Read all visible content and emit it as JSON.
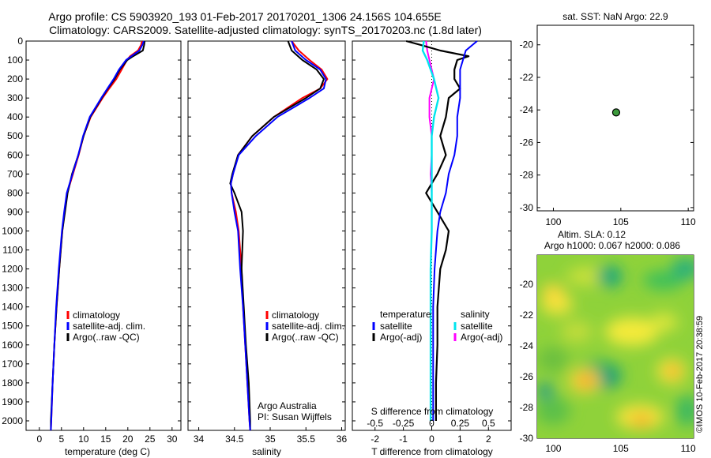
{
  "title_line1": "Argo profile: CS 5903920_193 01-Feb-2017 20170201_1306 24.156S 104.655E",
  "title_line2": "Climatology: CARS2009. Satellite-adjusted climatology: synTS_20170203.nc (1.8d later)",
  "watermark": "©IMOS 10-Feb-2017 20:38:59",
  "colors": {
    "climatology": "#ff0000",
    "satellite": "#0000ff",
    "argo": "#000000",
    "sat_diff_T": "#0000ff",
    "sal_sat": "#00e5ee",
    "sal_argo": "#ff00ff"
  },
  "panel_temp": {
    "xlabel": "temperature (deg C)",
    "xticks": [
      "0",
      "5",
      "10",
      "15",
      "20",
      "25",
      "30"
    ],
    "legend": [
      "climatology",
      "satellite-adj. clim.",
      "Argo(..raw -QC)"
    ]
  },
  "panel_sal": {
    "xlabel": "salinity",
    "xticks": [
      "34",
      "34.5",
      "35",
      "35.5",
      "36"
    ],
    "legend": [
      "climatology",
      "satellite-adj. clim.",
      "Argo(..raw -QC)"
    ],
    "note_line1": "Argo Australia",
    "note_line2": "PI: Susan Wijffels"
  },
  "panel_diff": {
    "xlabel": "T difference from climatology",
    "top_xlabel": "S difference from climatology",
    "xticks": [
      "-2",
      "-1",
      "0",
      "1",
      "2"
    ],
    "top_xticks": [
      "-0.5",
      "-0.25",
      "0",
      "0.25",
      "0.5"
    ],
    "legend_header_T": "temperature",
    "legend_header_S": "salinity",
    "legend_T": [
      "satellite",
      "Argo(-adj)"
    ],
    "legend_S": [
      "satellite",
      "Argo(-adj)"
    ]
  },
  "depth_ticks": [
    "0",
    "100",
    "200",
    "300",
    "400",
    "500",
    "600",
    "700",
    "800",
    "900",
    "1000",
    "1100",
    "1200",
    "1300",
    "1400",
    "1500",
    "1600",
    "1700",
    "1800",
    "1900",
    "2000"
  ],
  "map_panel": {
    "title": "sat. SST: NaN Argo: 22.9",
    "yticks": [
      "-20",
      "-22",
      "-24",
      "-26",
      "-28",
      "-30"
    ],
    "xticks": [
      "100",
      "105",
      "110"
    ],
    "float_lon": 104.655,
    "float_lat": -24.156
  },
  "sla_panel": {
    "title_line1": "Altim. SLA: 0.12",
    "title_line2": "Argo h1000: 0.067 h2000: 0.086",
    "yticks": [
      "-20",
      "-22",
      "-24",
      "-26",
      "-28",
      "-30"
    ],
    "xticks": [
      "100",
      "105",
      "110"
    ]
  },
  "chart_data": [
    {
      "type": "line",
      "name": "temperature profile",
      "xlabel": "temperature (deg C)",
      "xlim": [
        -3,
        32
      ],
      "ylim": [
        0,
        2050
      ],
      "y_reversed": true,
      "series": [
        {
          "name": "climatology",
          "depth": [
            0,
            20,
            50,
            80,
            100,
            150,
            200,
            250,
            300,
            400,
            500,
            600,
            700,
            800,
            900,
            1000,
            1200,
            1400,
            1600,
            1800,
            2000,
            2050
          ],
          "values": [
            23.2,
            23.0,
            22.3,
            20.5,
            19.8,
            18.6,
            17.4,
            15.8,
            14.3,
            11.6,
            10.0,
            8.9,
            7.6,
            6.3,
            5.7,
            5.2,
            4.5,
            3.9,
            3.4,
            3.0,
            2.7,
            2.6
          ]
        },
        {
          "name": "satellite-adj. clim.",
          "depth": [
            0,
            20,
            50,
            80,
            100,
            150,
            200,
            250,
            300,
            400,
            500,
            600,
            700,
            800,
            900,
            1000,
            1200,
            1400,
            1600,
            1800,
            2000,
            2050
          ],
          "values": [
            23.6,
            23.3,
            22.6,
            20.8,
            19.6,
            18.0,
            16.8,
            15.4,
            14.0,
            11.4,
            9.9,
            8.8,
            7.5,
            6.2,
            5.6,
            5.1,
            4.4,
            3.8,
            3.4,
            3.0,
            2.7,
            2.6
          ]
        },
        {
          "name": "Argo(..raw -QC)",
          "depth": [
            0,
            20,
            50,
            80,
            100,
            150,
            200,
            250,
            300,
            400,
            500,
            600,
            700,
            800,
            900,
            1000,
            1200,
            1400,
            1600,
            1800,
            2000,
            2050
          ],
          "values": [
            23.8,
            23.7,
            23.4,
            21.2,
            19.9,
            18.2,
            17.0,
            15.5,
            14.1,
            11.5,
            10.0,
            8.8,
            7.4,
            6.4,
            5.8,
            5.2,
            4.5,
            3.9,
            3.4,
            3.0,
            2.6,
            2.6
          ]
        }
      ]
    },
    {
      "type": "line",
      "name": "salinity profile",
      "xlabel": "salinity",
      "xlim": [
        33.85,
        36.05
      ],
      "ylim": [
        0,
        2050
      ],
      "y_reversed": true,
      "series": [
        {
          "name": "climatology",
          "depth": [
            0,
            50,
            100,
            150,
            200,
            250,
            300,
            400,
            500,
            600,
            700,
            750,
            800,
            900,
            1000,
            1200,
            1400,
            1600,
            1800,
            2000,
            2050
          ],
          "values": [
            35.3,
            35.4,
            35.55,
            35.72,
            35.8,
            35.7,
            35.45,
            35.05,
            34.75,
            34.55,
            34.48,
            34.45,
            34.46,
            34.52,
            34.56,
            34.6,
            34.62,
            34.65,
            34.68,
            34.71,
            34.72
          ]
        },
        {
          "name": "satellite-adj. clim.",
          "depth": [
            0,
            50,
            100,
            150,
            200,
            250,
            300,
            400,
            500,
            600,
            700,
            750,
            800,
            900,
            1000,
            1200,
            1400,
            1600,
            1800,
            2000,
            2050
          ],
          "values": [
            35.3,
            35.35,
            35.5,
            35.7,
            35.78,
            35.75,
            35.55,
            35.1,
            34.8,
            34.56,
            34.48,
            34.45,
            34.46,
            34.5,
            34.55,
            34.58,
            34.62,
            34.65,
            34.68,
            34.71,
            34.72
          ]
        },
        {
          "name": "Argo(..raw -QC)",
          "depth": [
            0,
            50,
            100,
            150,
            200,
            250,
            300,
            400,
            500,
            600,
            700,
            750,
            800,
            900,
            1000,
            1200,
            1400,
            1600,
            1800,
            2000,
            2050
          ],
          "values": [
            35.25,
            35.3,
            35.45,
            35.65,
            35.75,
            35.7,
            35.5,
            35.05,
            34.75,
            34.55,
            34.47,
            34.44,
            34.5,
            34.6,
            34.62,
            34.6,
            34.63,
            34.66,
            34.7,
            34.72,
            34.72
          ]
        }
      ]
    },
    {
      "type": "line",
      "name": "difference from climatology",
      "xlabel": "T difference from climatology",
      "x2label": "S difference from climatology",
      "xlim": [
        -2.8,
        2.8
      ],
      "x2lim": [
        -0.7,
        0.7
      ],
      "ylim": [
        0,
        2050
      ],
      "y_reversed": true,
      "series": [
        {
          "name": "T satellite",
          "axis": "T",
          "depth": [
            0,
            50,
            100,
            150,
            200,
            300,
            400,
            500,
            600,
            700,
            800,
            900,
            1000,
            1200,
            1400,
            1600,
            1800,
            2000
          ],
          "values": [
            1.6,
            1.2,
            1.1,
            1.0,
            1.0,
            1.0,
            0.9,
            0.9,
            0.8,
            0.6,
            0.5,
            0.3,
            0.2,
            0.1,
            0.05,
            0.05,
            0.05,
            0.05
          ]
        },
        {
          "name": "T Argo(-adj)",
          "axis": "T",
          "depth": [
            0,
            20,
            50,
            80,
            100,
            150,
            200,
            250,
            300,
            400,
            500,
            600,
            700,
            800,
            900,
            1000,
            1100,
            1200,
            1400,
            1600,
            1800,
            2000
          ],
          "values": [
            -0.9,
            -0.4,
            0.3,
            1.3,
            0.9,
            0.8,
            0.8,
            1.0,
            0.6,
            0.5,
            0.3,
            0.5,
            0.2,
            -0.2,
            0.2,
            0.6,
            0.5,
            0.3,
            0.2,
            0.2,
            0.15,
            0.15
          ]
        },
        {
          "name": "S satellite",
          "axis": "S",
          "depth": [
            0,
            50,
            100,
            150,
            200,
            300,
            400,
            500,
            600,
            700,
            800,
            900,
            1000,
            1200,
            1400,
            1600,
            1800,
            2000
          ],
          "values": [
            -0.07,
            -0.08,
            -0.04,
            -0.01,
            0.02,
            0.06,
            0.02,
            0.0,
            0.0,
            0.0,
            0.0,
            0.0,
            0.0,
            -0.01,
            -0.01,
            -0.01,
            -0.01,
            -0.01
          ]
        },
        {
          "name": "S Argo(-adj)",
          "axis": "S",
          "depth": [
            0,
            50,
            100,
            150,
            200,
            300,
            400,
            500,
            600,
            700,
            800
          ],
          "values": [
            -0.05,
            -0.04,
            -0.02,
            0.0,
            0.02,
            -0.02,
            -0.02,
            0.0,
            0.0,
            -0.01,
            0.0
          ]
        }
      ]
    }
  ]
}
